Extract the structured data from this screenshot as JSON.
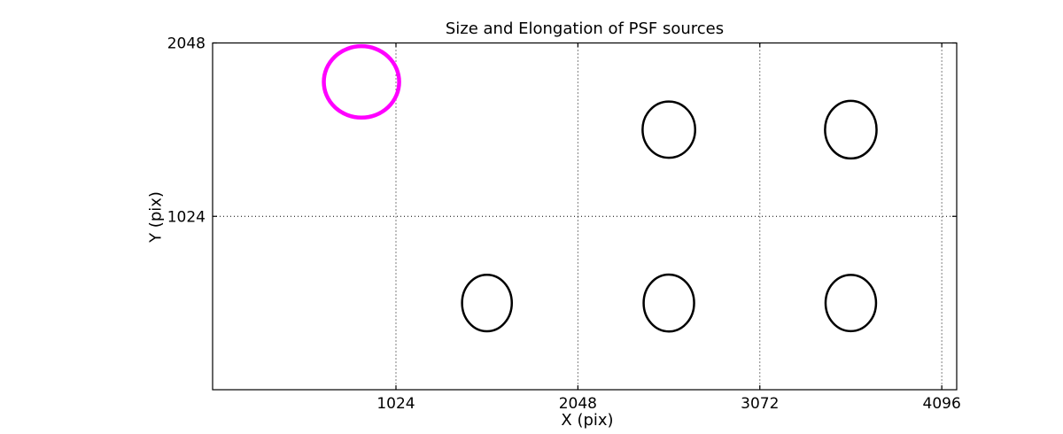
{
  "figure": {
    "title": "Size and Elongation of PSF sources",
    "xlabel": "X (pix)",
    "ylabel": "Y (pix)"
  },
  "colors": {
    "background": "#ffffff",
    "axes": "#000000",
    "grid": "#000000",
    "highlight_ellipse": "#ff00ff",
    "normal_ellipse": "#000000"
  },
  "chart_data": {
    "type": "scatter",
    "title": "Size and Elongation of PSF sources",
    "xlabel": "X (pix)",
    "ylabel": "Y (pix)",
    "xlim": [
      -8,
      4180
    ],
    "ylim": [
      0,
      2048
    ],
    "x_ticks": [
      "1024",
      "2048",
      "3072",
      "4096"
    ],
    "x_tick_values": [
      1024,
      2048,
      3072,
      4096
    ],
    "y_ticks": [
      "1024",
      "2048"
    ],
    "y_tick_values": [
      1024,
      2048
    ],
    "grid": "dotted",
    "legend_position": "none",
    "marker": "ellipse-outline",
    "sources": [
      {
        "x": 830,
        "y": 1818,
        "rx": 212,
        "ry": 211,
        "color": "#ff00ff",
        "linewidth": 4.5
      },
      {
        "x": 2560,
        "y": 1536,
        "rx": 148,
        "ry": 166,
        "color": "#000000",
        "linewidth": 2.5
      },
      {
        "x": 3584,
        "y": 1536,
        "rx": 145,
        "ry": 170,
        "color": "#000000",
        "linewidth": 2.5
      },
      {
        "x": 1536,
        "y": 512,
        "rx": 140,
        "ry": 167,
        "color": "#000000",
        "linewidth": 2.5
      },
      {
        "x": 2560,
        "y": 512,
        "rx": 142,
        "ry": 168,
        "color": "#000000",
        "linewidth": 2.5
      },
      {
        "x": 3584,
        "y": 512,
        "rx": 142,
        "ry": 166,
        "color": "#000000",
        "linewidth": 2.5
      }
    ]
  }
}
